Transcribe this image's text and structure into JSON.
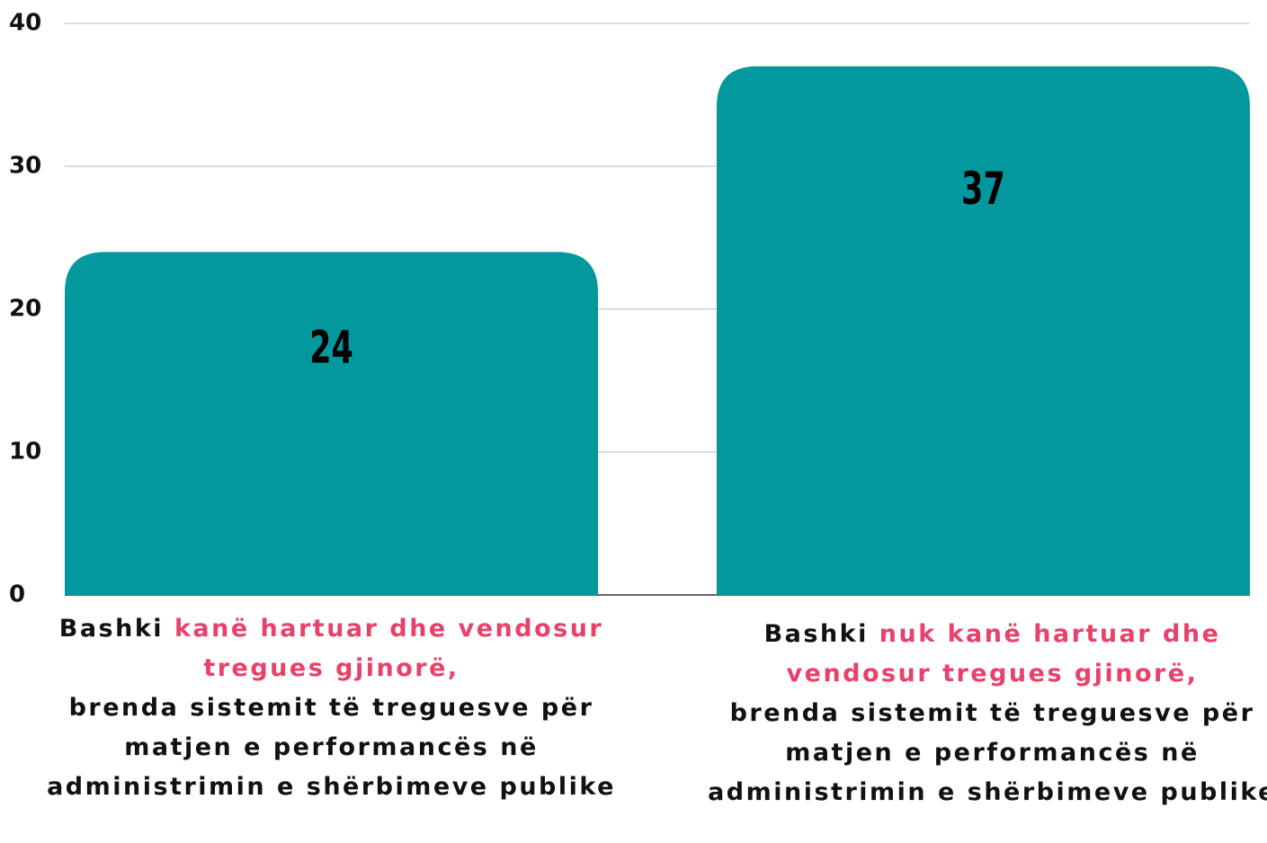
{
  "chart_data": {
    "type": "bar",
    "categories": [
      [
        "Bashki ",
        "kanë hartuar dhe vendosur tregues gjinorë,",
        "brenda sistemit të treguesve për matjen e performancës në administrimin e shërbimeve publike"
      ],
      [
        "Bashki ",
        "nuk kanë hartuar dhe vendosur tregues gjinorë,",
        "brenda sistemit të treguesve për matjen e performancës në administrimin e shërbimeve publike"
      ]
    ],
    "values": [
      24,
      37
    ],
    "color": "#03989e",
    "highlight_color": "#e8416a",
    "ylim": [
      0,
      40
    ],
    "yticks": [
      0,
      10,
      20,
      30,
      40
    ],
    "grid": true
  }
}
